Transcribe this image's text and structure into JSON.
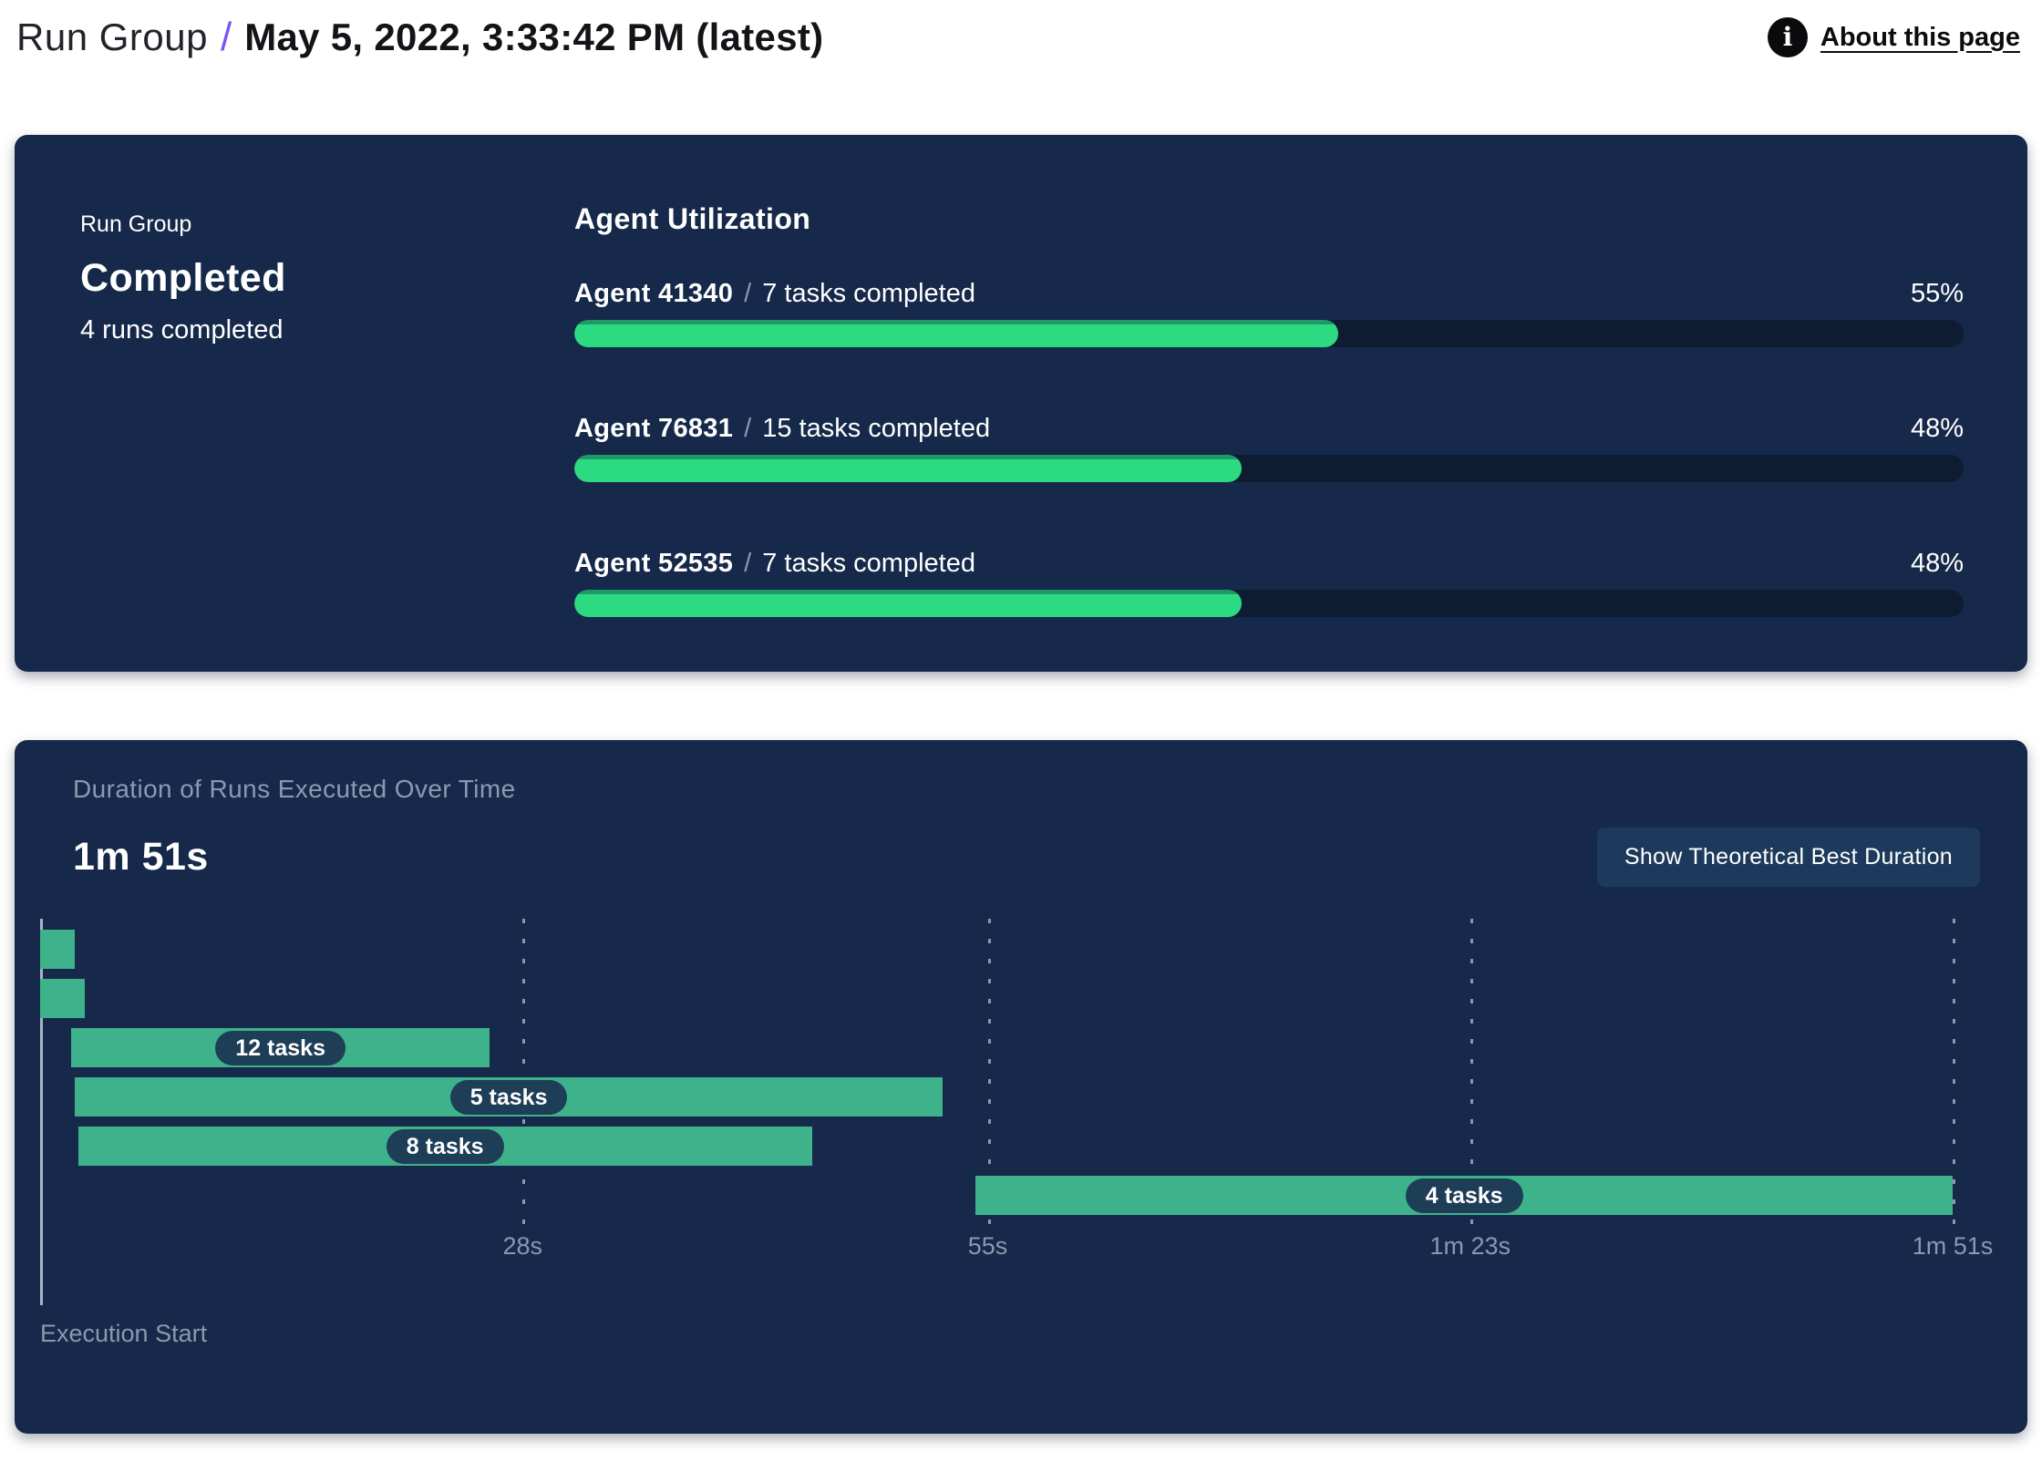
{
  "header": {
    "breadcrumb": "Run Group",
    "separator": "/",
    "title": "May 5, 2022, 3:33:42 PM (latest)",
    "info_icon_glyph": "i",
    "about_link": "About this page"
  },
  "run_group_panel": {
    "eyebrow": "Run Group",
    "status": "Completed",
    "runs_summary": "4 runs completed"
  },
  "ui": {
    "slash": "/"
  },
  "duration_panel": {
    "title": "Duration of Runs Executed Over Time",
    "total_duration": "1m 51s",
    "button_label": "Show Theoretical Best Duration"
  },
  "chart_data": [
    {
      "type": "bar",
      "title": "Agent Utilization",
      "categories": [
        "Agent 41340",
        "Agent 76831",
        "Agent 52535"
      ],
      "series": [
        {
          "name": "Utilization %",
          "values": [
            55,
            48,
            48
          ]
        }
      ],
      "xlim": [
        0,
        100
      ],
      "bars": [
        {
          "agent": "Agent 41340",
          "tasks_label": "7 tasks completed",
          "percent_label": "55%",
          "value": 55
        },
        {
          "agent": "Agent 76831",
          "tasks_label": "15 tasks completed",
          "percent_label": "48%",
          "value": 48
        },
        {
          "agent": "Agent 52535",
          "tasks_label": "7 tasks completed",
          "percent_label": "48%",
          "value": 48
        }
      ]
    },
    {
      "type": "gantt",
      "title": "Duration of Runs Executed Over Time",
      "total_duration_label": "1m 51s",
      "time_axis": {
        "min_s": 0,
        "max_s": 111,
        "origin_label": "Execution Start",
        "ticks": [
          {
            "s": 28,
            "label": "28s"
          },
          {
            "s": 55,
            "label": "55s"
          },
          {
            "s": 83,
            "label": "1m 23s"
          },
          {
            "s": 111,
            "label": "1m 51s"
          }
        ]
      },
      "runs": [
        {
          "start_s": 0,
          "end_s": 2.0,
          "label": ""
        },
        {
          "start_s": 0,
          "end_s": 2.6,
          "label": ""
        },
        {
          "start_s": 1.8,
          "end_s": 26.1,
          "label": "12 tasks"
        },
        {
          "start_s": 2.0,
          "end_s": 52.4,
          "label": "5 tasks"
        },
        {
          "start_s": 2.2,
          "end_s": 44.8,
          "label": "8 tasks"
        },
        {
          "start_s": 54.3,
          "end_s": 111,
          "label": "4 tasks"
        }
      ]
    }
  ],
  "colors": {
    "panel_bg": "#16294A",
    "progress_fill": "#2CDA82",
    "progress_fill_edge": "#1F9A66",
    "progress_track": "#0E1C31",
    "gantt_bar": "#3DB28B",
    "pill_bg": "#1E3D57",
    "button_bg": "#1D3A5C",
    "muted_text": "#8B99AF",
    "accent_purple": "#7A52F4"
  }
}
